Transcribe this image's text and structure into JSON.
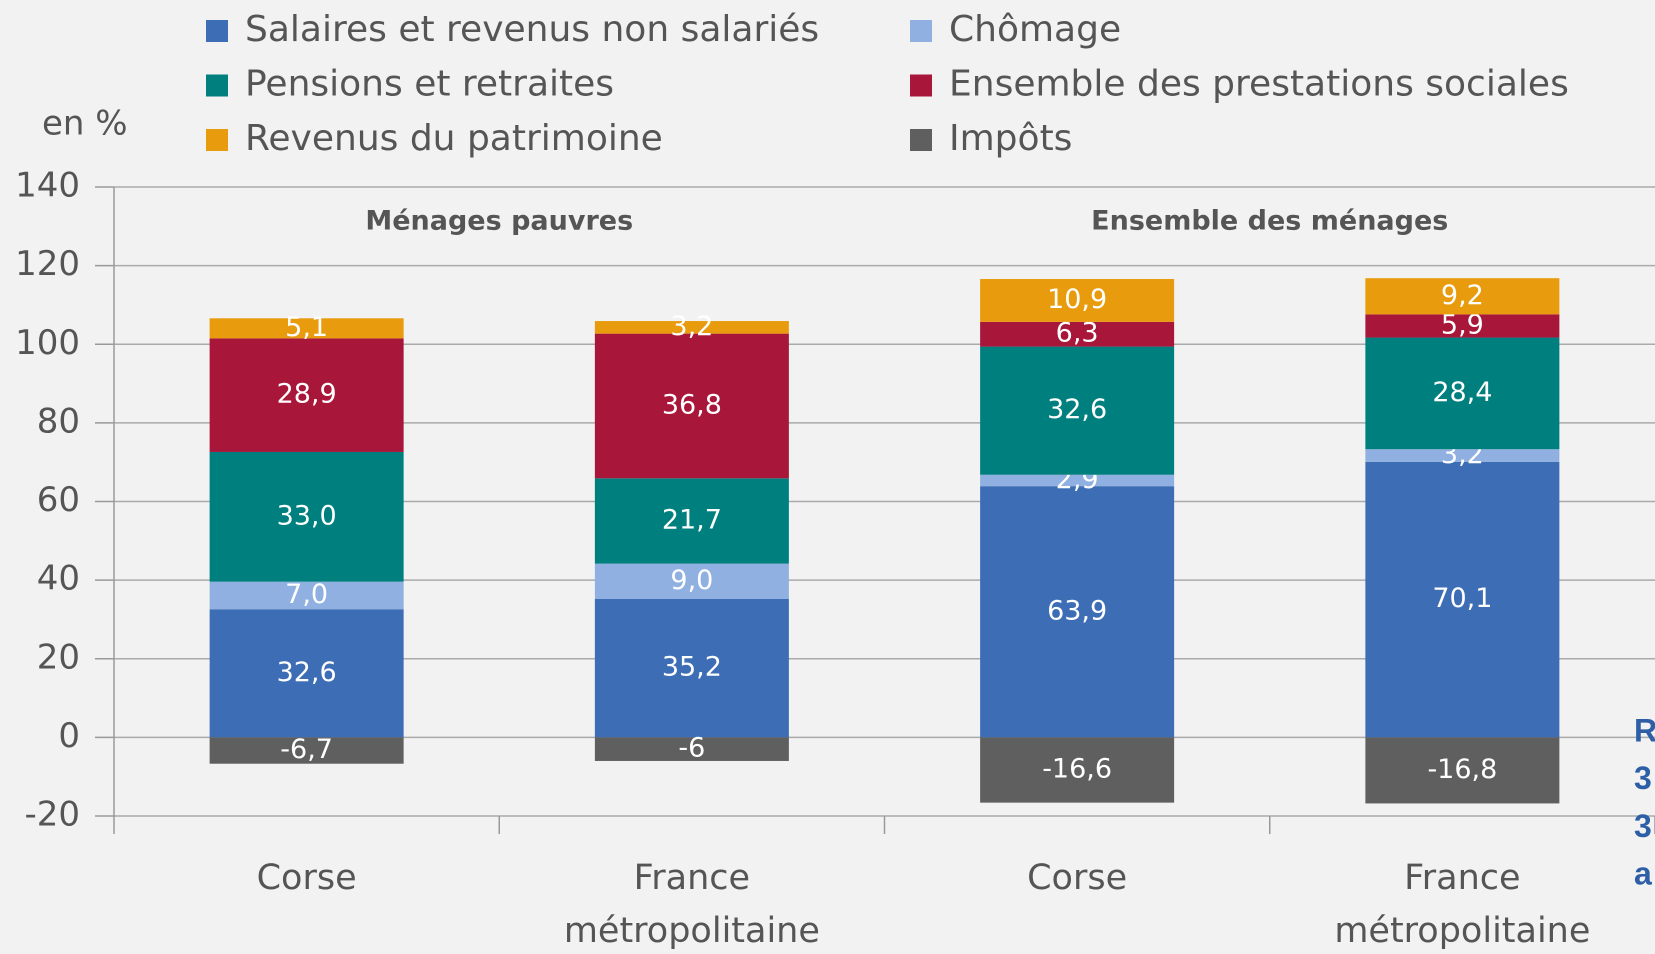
{
  "chart_data": {
    "type": "stacked_bar",
    "y_label": "en %",
    "groups": [
      {
        "label": "Ménages pauvres",
        "categories": [
          0,
          1
        ]
      },
      {
        "label": "Ensemble des ménages",
        "categories": [
          2,
          3
        ]
      }
    ],
    "categories": [
      "Corse",
      "France métropolitaine",
      "Corse",
      "France métropolitaine"
    ],
    "series": [
      {
        "name": "Salaires et revenus non salariés",
        "color": "#3d6db5",
        "values": [
          32.6,
          35.2,
          63.9,
          70.1
        ],
        "value_labels": [
          "32,6",
          "35,2",
          "63,9",
          "70,1"
        ]
      },
      {
        "name": "Chômage",
        "color": "#8fb0e0",
        "values": [
          7.0,
          9.0,
          2.9,
          3.2
        ],
        "value_labels": [
          "7,0",
          "9,0",
          "2,9",
          "3,2"
        ]
      },
      {
        "name": "Pensions et retraites",
        "color": "#007f7f",
        "values": [
          33.0,
          21.7,
          32.6,
          28.4
        ],
        "value_labels": [
          "33,0",
          "21,7",
          "32,6",
          "28,4"
        ]
      },
      {
        "name": "Ensemble des prestations sociales",
        "color": "#a8163a",
        "values": [
          28.9,
          36.8,
          6.3,
          5.9
        ],
        "value_labels": [
          "28,9",
          "36,8",
          "6,3",
          "5,9"
        ]
      },
      {
        "name": "Revenus du patrimoine",
        "color": "#e89b0c",
        "values": [
          5.1,
          3.2,
          10.9,
          9.2
        ],
        "value_labels": [
          "5,1",
          "3,2",
          "10,9",
          "9,2"
        ]
      },
      {
        "name": "Impôts",
        "color": "#5f5f5f",
        "values": [
          -6.7,
          -6,
          -16.6,
          -16.8
        ],
        "value_labels": [
          "-6,7",
          "-6",
          "-16,6",
          "-16,8"
        ]
      }
    ],
    "ylim": [
      -20,
      140
    ],
    "yticks": [
      -20,
      0,
      20,
      40,
      60,
      80,
      100,
      120,
      140
    ],
    "grid": true,
    "side_text": [
      "R",
      "3",
      "3",
      "a"
    ],
    "side_text_color": "#2e5fa6"
  }
}
